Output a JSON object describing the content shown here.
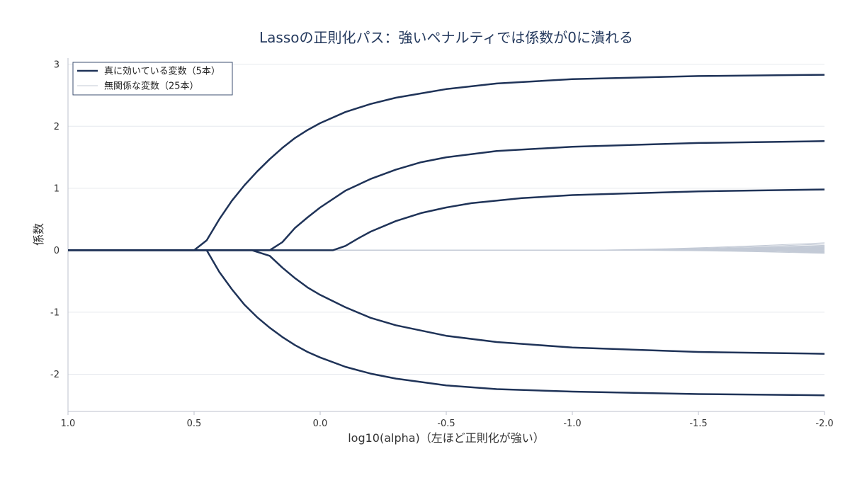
{
  "chart_data": {
    "type": "line",
    "title": "Lassoの正則化パス：強いペナルティでは係数が0に潰れる",
    "xlabel": "log10(alpha)（左ほど正則化が強い）",
    "ylabel": "係数",
    "xlim": [
      1.0,
      -2.0
    ],
    "ylim": [
      -2.6,
      3.1
    ],
    "xticks": [
      1.0,
      0.5,
      0.0,
      -0.5,
      -1.0,
      -1.5,
      -2.0
    ],
    "xtick_labels": [
      "1.0",
      "0.5",
      "0.0",
      "-0.5",
      "-1.0",
      "-1.5",
      "-2.0"
    ],
    "yticks": [
      -2,
      -1,
      0,
      1,
      2,
      3
    ],
    "ytick_labels": [
      "-2",
      "-1",
      "0",
      "1",
      "2",
      "3"
    ],
    "grid": "horizontal",
    "legend_position": "top-left",
    "legend": [
      {
        "label": "真に効いている変数（5本）",
        "color": "#1f3358",
        "width": 2.5
      },
      {
        "label": "無関係な変数（25本）",
        "color": "#c3cad6",
        "width": 1
      }
    ],
    "true_series": [
      {
        "x": [
          1.0,
          0.5,
          0.45,
          0.4,
          0.35,
          0.3,
          0.25,
          0.2,
          0.15,
          0.1,
          0.05,
          0.0,
          -0.1,
          -0.2,
          -0.3,
          -0.5,
          -0.7,
          -1.0,
          -1.5,
          -2.0
        ],
        "y": [
          0,
          0,
          0.16,
          0.5,
          0.8,
          1.05,
          1.27,
          1.47,
          1.65,
          1.81,
          1.94,
          2.05,
          2.23,
          2.36,
          2.46,
          2.6,
          2.69,
          2.76,
          2.81,
          2.83
        ]
      },
      {
        "x": [
          1.0,
          0.2,
          0.15,
          0.1,
          0.05,
          0.0,
          -0.1,
          -0.2,
          -0.3,
          -0.4,
          -0.5,
          -0.7,
          -1.0,
          -1.5,
          -2.0
        ],
        "y": [
          0,
          0,
          0.13,
          0.36,
          0.53,
          0.69,
          0.96,
          1.15,
          1.3,
          1.42,
          1.5,
          1.6,
          1.67,
          1.73,
          1.76
        ]
      },
      {
        "x": [
          1.0,
          -0.05,
          -0.1,
          -0.15,
          -0.2,
          -0.3,
          -0.4,
          -0.5,
          -0.6,
          -0.8,
          -1.0,
          -1.5,
          -2.0
        ],
        "y": [
          0,
          0,
          0.07,
          0.19,
          0.3,
          0.47,
          0.6,
          0.69,
          0.76,
          0.84,
          0.89,
          0.95,
          0.98
        ]
      },
      {
        "x": [
          1.0,
          0.45,
          0.4,
          0.35,
          0.3,
          0.25,
          0.2,
          0.15,
          0.1,
          0.05,
          0.0,
          -0.1,
          -0.2,
          -0.3,
          -0.5,
          -0.7,
          -1.0,
          -1.5,
          -2.0
        ],
        "y": [
          0,
          0,
          -0.35,
          -0.63,
          -0.88,
          -1.08,
          -1.25,
          -1.4,
          -1.53,
          -1.64,
          -1.73,
          -1.88,
          -1.99,
          -2.07,
          -2.18,
          -2.24,
          -2.28,
          -2.32,
          -2.34
        ]
      },
      {
        "x": [
          1.0,
          0.27,
          0.2,
          0.15,
          0.1,
          0.05,
          0.0,
          -0.1,
          -0.2,
          -0.3,
          -0.5,
          -0.7,
          -1.0,
          -1.5,
          -2.0
        ],
        "y": [
          0,
          0,
          -0.09,
          -0.28,
          -0.45,
          -0.6,
          -0.72,
          -0.92,
          -1.09,
          -1.21,
          -1.38,
          -1.48,
          -1.57,
          -1.64,
          -1.67
        ]
      }
    ],
    "irrelevant_series": [
      {
        "start": -1.0,
        "end": 0.12
      },
      {
        "start": -1.05,
        "end": 0.1
      },
      {
        "start": -1.1,
        "end": 0.08
      },
      {
        "start": -1.15,
        "end": 0.07
      },
      {
        "start": -1.2,
        "end": 0.06
      },
      {
        "start": -1.25,
        "end": 0.05
      },
      {
        "start": -1.3,
        "end": 0.04
      },
      {
        "start": -1.35,
        "end": 0.035
      },
      {
        "start": -1.4,
        "end": 0.03
      },
      {
        "start": -1.45,
        "end": 0.025
      },
      {
        "start": -1.5,
        "end": 0.02
      },
      {
        "start": -1.55,
        "end": 0.015
      },
      {
        "start": -1.6,
        "end": 0.01
      },
      {
        "start": -1.65,
        "end": 0.005
      },
      {
        "start": -1.7,
        "end": -0.005
      },
      {
        "start": -1.75,
        "end": -0.01
      },
      {
        "start": -1.8,
        "end": -0.015
      },
      {
        "start": -1.1,
        "end": -0.02
      },
      {
        "start": -1.2,
        "end": -0.025
      },
      {
        "start": -1.3,
        "end": -0.03
      },
      {
        "start": -1.4,
        "end": -0.035
      },
      {
        "start": -1.5,
        "end": -0.04
      },
      {
        "start": -1.6,
        "end": -0.045
      },
      {
        "start": -1.25,
        "end": -0.05
      },
      {
        "start": -1.35,
        "end": 0.045
      }
    ]
  }
}
